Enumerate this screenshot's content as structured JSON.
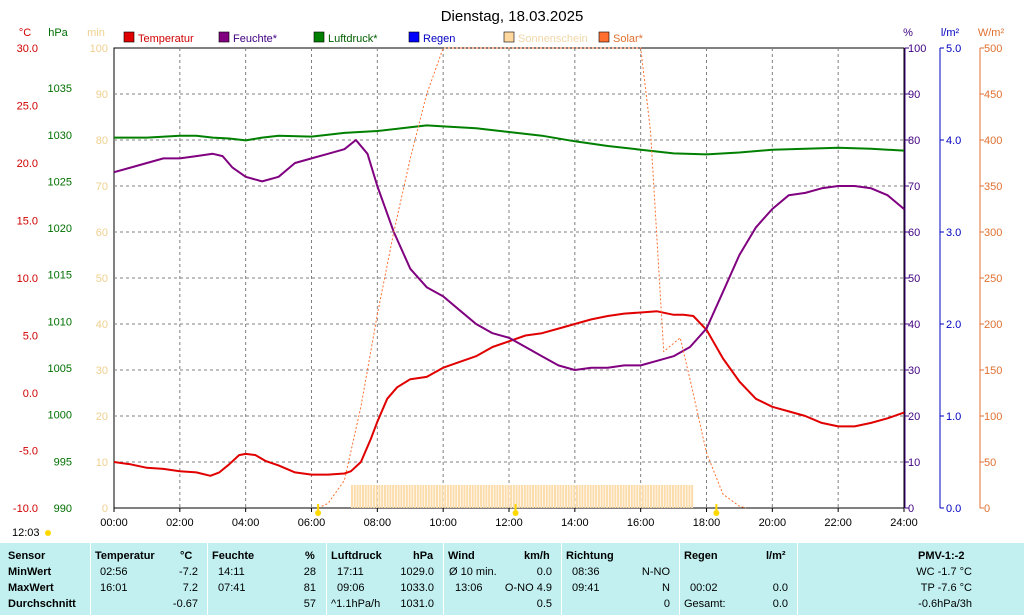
{
  "chart_data": {
    "type": "line",
    "title": "Dienstag, 18.03.2025",
    "x_ticks": [
      "00:00",
      "02:00",
      "04:00",
      "06:00",
      "08:00",
      "10:00",
      "12:00",
      "14:00",
      "16:00",
      "18:00",
      "20:00",
      "22:00",
      "24:00"
    ],
    "axes": {
      "temperature": {
        "unit": "°C",
        "range": [
          -10,
          30
        ],
        "ticks": [
          "30.0",
          "25.0",
          "20.0",
          "15.0",
          "10.0",
          "5.0",
          "0.0",
          "-5.0",
          "-10.0"
        ],
        "color": "#d00000"
      },
      "pressure": {
        "unit": "hPa",
        "range": [
          990,
          1039.3
        ],
        "ticks": [
          "1035",
          "1030",
          "1025",
          "1020",
          "1015",
          "1010",
          "1005",
          "1000",
          "995",
          "990"
        ],
        "color": "#007000"
      },
      "sunshine": {
        "unit": "min",
        "range": [
          0,
          100
        ],
        "ticks": [
          "100",
          "90",
          "80",
          "70",
          "60",
          "50",
          "40",
          "30",
          "20",
          "10",
          "0"
        ],
        "color": "#f0d090"
      },
      "humidity": {
        "unit": "%",
        "range": [
          0,
          100
        ],
        "ticks": [
          "100",
          "90",
          "80",
          "70",
          "60",
          "50",
          "40",
          "30",
          "20",
          "10",
          "0"
        ],
        "color": "#400080"
      },
      "rain": {
        "unit": "l/m²",
        "range": [
          0,
          5
        ],
        "ticks": [
          "5.0",
          "4.0",
          "3.0",
          "2.0",
          "1.0",
          "0.0"
        ],
        "color": "#0000c0"
      },
      "solar": {
        "unit": "W/m²",
        "range": [
          0,
          500
        ],
        "ticks": [
          "500",
          "450",
          "400",
          "350",
          "300",
          "250",
          "200",
          "150",
          "100",
          "50",
          "0"
        ],
        "color": "#e07030"
      }
    },
    "legend": [
      {
        "name": "Temperatur",
        "color": "#e00000",
        "text_color": "#d00000"
      },
      {
        "name": "Feuchte*",
        "color": "#800080",
        "text_color": "#400080"
      },
      {
        "name": "Luftdruck*",
        "color": "#008000",
        "text_color": "#006000"
      },
      {
        "name": "Regen",
        "color": "#0000ff",
        "text_color": "#0000c0"
      },
      {
        "name": "Sonnenschein",
        "color": "#ffd8a0",
        "text_color": "#f0d8a8"
      },
      {
        "name": "Solar*",
        "color": "#ff7030",
        "text_color": "#e07030"
      }
    ],
    "series": [
      {
        "name": "Temperatur",
        "axis": "temperature",
        "color": "#e00000",
        "x": [
          0,
          0.5,
          1,
          1.5,
          2,
          2.5,
          2.93,
          3.2,
          3.5,
          3.8,
          4,
          4.3,
          4.6,
          5,
          5.5,
          6,
          6.5,
          7,
          7.2,
          7.5,
          7.8,
          8,
          8.3,
          8.6,
          9,
          9.5,
          10,
          10.5,
          11,
          11.5,
          12,
          12.5,
          13,
          13.5,
          14,
          14.5,
          15,
          15.5,
          16,
          16.5,
          17,
          17.3,
          17.6,
          18,
          18.5,
          19,
          19.5,
          20,
          20.5,
          21,
          21.5,
          22,
          22.5,
          23,
          23.5,
          24
        ],
        "y": [
          -6.0,
          -6.2,
          -6.5,
          -6.6,
          -6.8,
          -6.9,
          -7.2,
          -6.9,
          -6.2,
          -5.4,
          -5.3,
          -5.4,
          -5.9,
          -6.3,
          -6.9,
          -7.1,
          -7.1,
          -7.0,
          -6.8,
          -6.0,
          -4.0,
          -2.5,
          -0.5,
          0.5,
          1.2,
          1.4,
          2.2,
          2.7,
          3.2,
          4.0,
          4.5,
          5.0,
          5.2,
          5.6,
          6.0,
          6.4,
          6.7,
          6.9,
          7.0,
          7.1,
          6.8,
          6.8,
          6.7,
          5.5,
          3.0,
          1.0,
          -0.5,
          -1.2,
          -1.6,
          -2.0,
          -2.6,
          -2.9,
          -2.9,
          -2.6,
          -2.2,
          -1.7
        ]
      },
      {
        "name": "Feuchte*",
        "axis": "humidity",
        "color": "#800080",
        "x": [
          0,
          0.5,
          1,
          1.5,
          2,
          2.5,
          3,
          3.3,
          3.6,
          4,
          4.5,
          5,
          5.5,
          6,
          6.5,
          7,
          7.35,
          7.7,
          8,
          8.5,
          9,
          9.5,
          10,
          10.5,
          11,
          11.5,
          12,
          12.5,
          13,
          13.5,
          14,
          14.5,
          15,
          15.5,
          16,
          16.5,
          17,
          17.5,
          18,
          18.5,
          19,
          19.5,
          20,
          20.5,
          21,
          21.5,
          22,
          22.5,
          23,
          23.5,
          24
        ],
        "y": [
          73,
          74,
          75,
          76,
          76,
          76.5,
          77,
          76.5,
          74,
          72,
          71,
          72,
          75,
          76,
          77,
          78,
          80,
          77,
          70,
          60,
          52,
          48,
          46,
          43,
          40,
          38,
          37,
          35,
          33,
          31,
          30,
          30.5,
          30.5,
          31,
          31,
          32,
          33,
          35,
          39,
          47,
          55,
          61,
          65,
          68,
          68.5,
          69.5,
          70,
          70,
          69.5,
          68,
          65
        ]
      },
      {
        "name": "Luftdruck*",
        "axis": "pressure",
        "color": "#008000",
        "x": [
          0,
          1,
          2,
          2.5,
          3,
          3.5,
          4,
          4.5,
          5,
          6,
          7,
          8,
          9,
          9.5,
          10,
          11,
          12,
          13,
          14,
          15,
          16,
          17,
          18,
          19,
          20,
          21,
          22,
          23,
          24
        ],
        "y": [
          1029.7,
          1029.7,
          1029.9,
          1029.9,
          1029.7,
          1029.6,
          1029.4,
          1029.7,
          1029.9,
          1029.8,
          1030.2,
          1030.4,
          1030.8,
          1031.0,
          1030.9,
          1030.7,
          1030.3,
          1029.9,
          1029.3,
          1028.8,
          1028.4,
          1028.0,
          1027.9,
          1028.1,
          1028.4,
          1028.5,
          1028.6,
          1028.5,
          1028.3
        ]
      },
      {
        "name": "Solar*",
        "axis": "solar",
        "color": "#ff7030",
        "x": [
          6.2,
          6.5,
          7,
          7.5,
          8,
          8.5,
          9,
          9.5,
          10,
          10.5,
          11,
          11.5,
          12,
          12.5,
          13,
          13.5,
          14,
          14.5,
          15,
          15.5,
          16,
          16.3,
          16.7,
          17.2,
          17.5,
          18,
          18.5,
          19,
          19.2
        ],
        "y": [
          0,
          5,
          30,
          110,
          210,
          300,
          380,
          450,
          500,
          500,
          500,
          500,
          500,
          500,
          500,
          500,
          500,
          500,
          500,
          500,
          500,
          410,
          170,
          185,
          140,
          60,
          15,
          2,
          0
        ]
      }
    ],
    "sunshine_bars": {
      "axis": "sunshine",
      "color": "#fcdcaa",
      "from": 7.2,
      "to": 17.6,
      "value": 5
    },
    "sun_markers": [
      {
        "name": "sunrise",
        "time": 6.2,
        "color": "#ffd800"
      },
      {
        "name": "noon",
        "time": 12.2,
        "color": "#ffd800"
      },
      {
        "name": "sunset",
        "time": 18.3,
        "color": "#ffd800"
      }
    ],
    "grid": true
  },
  "clock": "12:03",
  "stats": {
    "headers": {
      "sensor": "Sensor",
      "temperatur": "Temperatur",
      "temperatur_unit": "°C",
      "feuchte": "Feuchte",
      "feuchte_unit": "%",
      "luftdruck": "Luftdruck",
      "luftdruck_unit": "hPa",
      "wind": "Wind",
      "wind_unit": "km/h",
      "richtung": "Richtung",
      "regen": "Regen",
      "regen_unit": "l/m²",
      "pmv": "PMV-1:-2"
    },
    "rows": [
      {
        "label": "MinWert",
        "t_time": "02:56",
        "t_val": "-7.2",
        "h_time": "14:11",
        "h_val": "28",
        "p_time": "17:11",
        "p_val": "1029.0",
        "w_label": "Ø 10 min.",
        "w_val": "0.0",
        "r_time": "08:36",
        "r_dir": "N-NO",
        "rain_time": "",
        "rain_val": "",
        "extra": "WC -1.7 °C"
      },
      {
        "label": "MaxWert",
        "t_time": "16:01",
        "t_val": "7.2",
        "h_time": "07:41",
        "h_val": "81",
        "p_time": "09:06",
        "p_val": "1033.0",
        "w_label": "13:06",
        "w_val": "O-NO 4.9",
        "r_time": "09:41",
        "r_dir": "N",
        "rain_time": "00:02",
        "rain_val": "0.0",
        "extra": "TP -7.6 °C"
      },
      {
        "label": "Durchschnitt",
        "t_time": "",
        "t_val": "-0.67",
        "h_time": "",
        "h_val": "57",
        "p_time": "^1.1hPa/h",
        "p_val": "1031.0",
        "w_label": "",
        "w_val": "0.5",
        "r_time": "",
        "r_dir": "0",
        "rain_time": "Gesamt:",
        "rain_val": "0.0",
        "extra": "-0.6hPa/3h"
      }
    ]
  }
}
